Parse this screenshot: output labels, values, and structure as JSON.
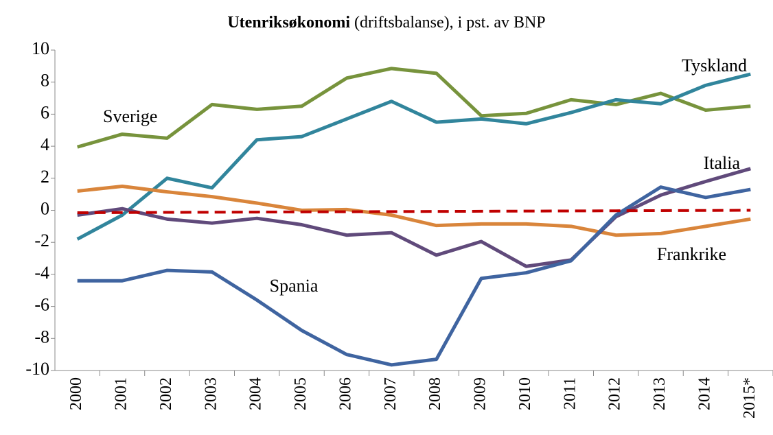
{
  "chart_data": {
    "type": "line",
    "title": "Utenriksøkonomi",
    "subtitle": "(driftsbalanse), i pst. av BNP",
    "categories": [
      "2000",
      "2001",
      "2002",
      "2003",
      "2004",
      "2005",
      "2006",
      "2007",
      "2008",
      "2009",
      "2010",
      "2011",
      "2012",
      "2013",
      "2014",
      "2015*"
    ],
    "series": [
      {
        "name": "Sverige",
        "color": "#77933c",
        "values": [
          3.95,
          4.75,
          4.5,
          6.6,
          6.3,
          6.5,
          8.25,
          8.85,
          8.55,
          5.9,
          6.05,
          6.9,
          6.6,
          7.3,
          6.25,
          6.5
        ]
      },
      {
        "name": "Tyskland",
        "color": "#31859c",
        "values": [
          -1.8,
          -0.3,
          2.0,
          1.4,
          4.4,
          4.6,
          5.7,
          6.8,
          5.5,
          5.7,
          5.4,
          6.1,
          6.9,
          6.65,
          7.8,
          8.5
        ]
      },
      {
        "name": "Frankrike",
        "color": "#d9853b",
        "values": [
          1.2,
          1.5,
          1.15,
          0.85,
          0.45,
          0.0,
          0.05,
          -0.3,
          -0.95,
          -0.85,
          -0.85,
          -1.0,
          -1.55,
          -1.45,
          -1.0,
          -0.55
        ]
      },
      {
        "name": "Italia",
        "color": "#604a7b",
        "values": [
          -0.3,
          0.1,
          -0.55,
          -0.8,
          -0.5,
          -0.9,
          -1.55,
          -1.4,
          -2.8,
          -1.95,
          -3.5,
          -3.1,
          -0.4,
          0.95,
          1.8,
          2.6
        ]
      },
      {
        "name": "Spania",
        "color": "#3f64a0",
        "values": [
          -4.4,
          -4.4,
          -3.75,
          -3.85,
          -5.6,
          -7.5,
          -9.0,
          -9.65,
          -9.3,
          -4.25,
          -3.9,
          -3.15,
          -0.3,
          1.45,
          0.8,
          1.3
        ]
      },
      {
        "color": "#c00000",
        "dashed": true,
        "values": [
          -0.15,
          -0.14,
          -0.13,
          -0.12,
          -0.11,
          -0.1,
          -0.09,
          -0.08,
          -0.07,
          -0.06,
          -0.05,
          -0.04,
          -0.03,
          -0.02,
          -0.01,
          0
        ]
      }
    ],
    "ylim": [
      -10,
      10
    ],
    "yticks": [
      -10,
      -8,
      -6,
      -4,
      -2,
      0,
      2,
      4,
      6,
      8,
      10
    ]
  }
}
